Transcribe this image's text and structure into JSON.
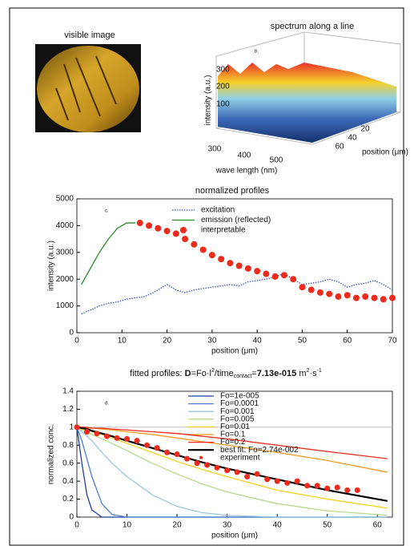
{
  "image_panel": {
    "title": "visible image"
  },
  "spectrum_panel": {
    "title": "spectrum along a line",
    "label": "b.",
    "ylabel": "intensity (a.u.)",
    "xlabel": "wave length (nm)",
    "zlabel": "position (μm)",
    "yticks": [
      100,
      200,
      300
    ],
    "xticks": [
      300,
      400,
      500
    ],
    "zticks": [
      20,
      40,
      60
    ]
  },
  "chart_data": [
    {
      "type": "line",
      "title": "normalized profiles",
      "label": "c.",
      "xlabel": "position (μm)",
      "ylabel": "intensity (a.u.)",
      "xlim": [
        0,
        70
      ],
      "xticks": [
        0,
        10,
        20,
        30,
        40,
        50,
        60,
        70
      ],
      "ylim": [
        0,
        5000
      ],
      "yticks": [
        0,
        1000,
        2000,
        3000,
        4000,
        5000
      ],
      "legend": "upper right",
      "series": [
        {
          "name": "excitation",
          "color": "#3b55b5",
          "line_style": "dotted",
          "x": [
            1,
            3,
            5,
            7,
            9,
            11,
            13,
            15,
            17,
            19,
            20,
            22,
            24,
            26,
            28,
            30,
            32,
            34,
            36,
            38,
            40,
            42,
            44,
            46,
            48,
            50,
            52,
            54,
            56,
            58,
            60,
            62,
            64,
            66,
            68,
            70
          ],
          "values": [
            700,
            850,
            1000,
            1100,
            1150,
            1250,
            1300,
            1350,
            1500,
            1700,
            1800,
            1600,
            1500,
            1600,
            1650,
            1700,
            1750,
            1800,
            1750,
            1900,
            1950,
            2000,
            2100,
            2200,
            2000,
            1800,
            1850,
            1900,
            2000,
            1900,
            1700,
            1800,
            1850,
            1950,
            1800,
            1600
          ]
        },
        {
          "name": "emission (reflected)",
          "color": "#2e8b2e",
          "line_style": "solid",
          "x": [
            1,
            3,
            5,
            7,
            9,
            11,
            13
          ],
          "values": [
            1800,
            2400,
            3000,
            3500,
            3900,
            4100,
            4100
          ]
        },
        {
          "name": "interpretable",
          "color": "#ee2a1b",
          "line_style": "none",
          "marker": "circle",
          "x": [
            14,
            16,
            18,
            20,
            22,
            24,
            26,
            28,
            30,
            32,
            34,
            36,
            38,
            40,
            42,
            44,
            46,
            48,
            50,
            52,
            54,
            56,
            58,
            60,
            62,
            64,
            66,
            68,
            70
          ],
          "values": [
            4100,
            4000,
            3900,
            3800,
            3700,
            3500,
            3300,
            3100,
            2900,
            2750,
            2600,
            2500,
            2400,
            2300,
            2200,
            2100,
            2150,
            2000,
            1700,
            1600,
            1500,
            1450,
            1350,
            1400,
            1300,
            1350,
            1300,
            1250,
            1300
          ]
        }
      ]
    },
    {
      "type": "line",
      "title_parts": [
        "fitted profiles: ",
        "D",
        "=Fo·l",
        "2",
        "/time",
        "contact",
        "=",
        "7.13e-015",
        " m",
        "2",
        "·s",
        "-1"
      ],
      "label": "d.",
      "xlabel": "position (μm)",
      "ylabel": "normalized conc.",
      "xlim": [
        0,
        63
      ],
      "xticks": [
        0,
        10,
        20,
        30,
        40,
        50,
        60
      ],
      "ylim": [
        0,
        1.4
      ],
      "yticks": [
        0,
        0.2,
        0.4,
        0.6,
        0.8,
        1,
        1.2,
        1.4
      ],
      "legend": "upper right",
      "series": [
        {
          "name": "Fo=1e-005",
          "color": "#1f3f9a",
          "line_style": "solid",
          "x": [
            0,
            1,
            2,
            3,
            5,
            7,
            10,
            15,
            20,
            25,
            30,
            40,
            50,
            62
          ],
          "values": [
            1,
            0.6,
            0.25,
            0.08,
            0,
            0,
            0,
            0,
            0,
            0,
            0,
            0,
            0,
            0
          ]
        },
        {
          "name": "Fo=0.0001",
          "color": "#4b7fd4",
          "line_style": "solid",
          "x": [
            0,
            1,
            2,
            3,
            5,
            7,
            10,
            15,
            20,
            25,
            30,
            40,
            50,
            62
          ],
          "values": [
            1,
            0.85,
            0.65,
            0.45,
            0.15,
            0.03,
            0,
            0,
            0,
            0,
            0,
            0,
            0,
            0
          ]
        },
        {
          "name": "Fo=0.001",
          "color": "#9cc7d8",
          "line_style": "solid",
          "x": [
            0,
            1,
            2,
            3,
            5,
            7,
            10,
            15,
            20,
            25,
            30,
            40,
            50,
            62
          ],
          "values": [
            1,
            0.95,
            0.9,
            0.85,
            0.72,
            0.6,
            0.45,
            0.25,
            0.12,
            0.05,
            0.02,
            0,
            0,
            0
          ]
        },
        {
          "name": "Fo=0.005",
          "color": "#b9d98a",
          "line_style": "solid",
          "x": [
            0,
            1,
            2,
            3,
            5,
            7,
            10,
            15,
            20,
            25,
            30,
            40,
            50,
            62
          ],
          "values": [
            1,
            0.97,
            0.95,
            0.92,
            0.87,
            0.82,
            0.74,
            0.6,
            0.48,
            0.37,
            0.28,
            0.15,
            0.07,
            0.02
          ]
        },
        {
          "name": "Fo=0.01",
          "color": "#f2d21b",
          "line_style": "solid",
          "x": [
            0,
            1,
            2,
            3,
            5,
            7,
            10,
            15,
            20,
            25,
            30,
            40,
            50,
            62
          ],
          "values": [
            1,
            0.98,
            0.97,
            0.95,
            0.92,
            0.88,
            0.82,
            0.72,
            0.62,
            0.53,
            0.45,
            0.3,
            0.2,
            0.1
          ]
        },
        {
          "name": "Fo=0.1",
          "color": "#f59a1c",
          "line_style": "solid",
          "x": [
            0,
            1,
            2,
            3,
            5,
            7,
            10,
            15,
            20,
            25,
            30,
            40,
            50,
            62
          ],
          "values": [
            1,
            1,
            0.99,
            0.99,
            0.98,
            0.97,
            0.95,
            0.92,
            0.88,
            0.84,
            0.8,
            0.72,
            0.63,
            0.5
          ]
        },
        {
          "name": "Fo=0.2",
          "color": "#ee2a1b",
          "line_style": "solid",
          "x": [
            0,
            1,
            2,
            3,
            5,
            7,
            10,
            15,
            20,
            25,
            30,
            40,
            50,
            62
          ],
          "values": [
            1,
            1,
            1,
            0.99,
            0.99,
            0.98,
            0.97,
            0.95,
            0.93,
            0.9,
            0.87,
            0.8,
            0.73,
            0.65
          ]
        },
        {
          "name": "best fit: Fo=2.74e-002",
          "color": "#000000",
          "line_style": "solid",
          "width": 2.2,
          "x": [
            0,
            1,
            2,
            3,
            5,
            7,
            10,
            15,
            20,
            25,
            30,
            40,
            50,
            62
          ],
          "values": [
            1,
            0.99,
            0.98,
            0.96,
            0.93,
            0.9,
            0.85,
            0.77,
            0.69,
            0.61,
            0.54,
            0.42,
            0.3,
            0.18
          ]
        },
        {
          "name": "experiment",
          "color": "#ee2a1b",
          "line_style": "none",
          "marker": "circle",
          "x": [
            0,
            2,
            4,
            6,
            8,
            10,
            12,
            14,
            16,
            18,
            20,
            22,
            24,
            26,
            28,
            30,
            32,
            34,
            36,
            38,
            40,
            42,
            44,
            46,
            48,
            50,
            52,
            54,
            56
          ],
          "values": [
            1,
            0.95,
            0.93,
            0.9,
            0.88,
            0.87,
            0.85,
            0.8,
            0.77,
            0.72,
            0.7,
            0.65,
            0.6,
            0.58,
            0.55,
            0.52,
            0.5,
            0.45,
            0.48,
            0.42,
            0.4,
            0.38,
            0.4,
            0.35,
            0.35,
            0.32,
            0.33,
            0.3,
            0.3
          ]
        }
      ]
    }
  ]
}
